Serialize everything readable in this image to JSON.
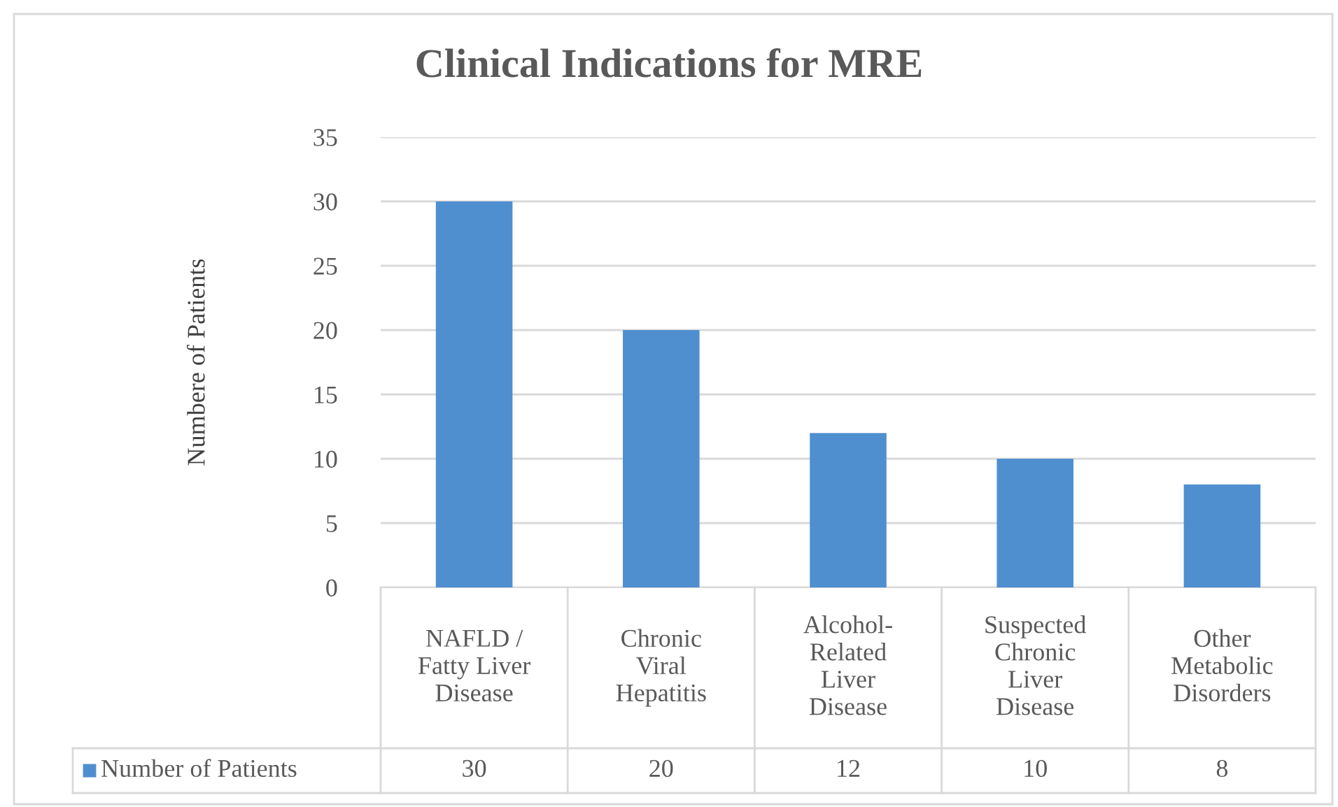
{
  "chart_data": {
    "type": "bar",
    "title": "Clinical Indications for MRE",
    "ylabel": "Numbere of Patients",
    "categories": [
      "NAFLD /\nFatty Liver\nDisease",
      "Chronic\nViral\nHepatitis",
      "Alcohol-\nRelated\nLiver\nDisease",
      "Suspected\nChronic\nLiver\nDisease",
      "Other\nMetabolic\nDisorders"
    ],
    "series": [
      {
        "name": "Number of Patients",
        "color": "#4f8fd0",
        "values": [
          30,
          20,
          12,
          10,
          8
        ]
      }
    ],
    "ylim": [
      0,
      35
    ],
    "yticks": [
      0,
      5,
      10,
      15,
      20,
      25,
      30,
      35
    ],
    "grid": "y",
    "data_labels": true
  }
}
